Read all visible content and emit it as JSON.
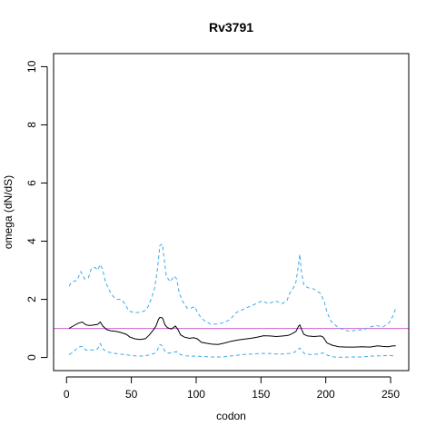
{
  "chart_data": {
    "type": "line",
    "title": "Rv3791",
    "xlabel": "codon",
    "ylabel": "omega (dN/dS)",
    "xlim": [
      -10,
      264
    ],
    "ylim": [
      -0.45,
      10.45
    ],
    "x_ticks": [
      0,
      50,
      100,
      150,
      200,
      250
    ],
    "y_ticks": [
      0,
      2,
      4,
      6,
      8,
      10
    ],
    "reference_line": {
      "y": 1,
      "color": "#cc66cc"
    },
    "colors": {
      "estimate": "#000000",
      "bounds": "#3fa9e6"
    },
    "series": [
      {
        "role": "upper",
        "style": "dashed",
        "points": [
          [
            2,
            2.45
          ],
          [
            4,
            2.6
          ],
          [
            8,
            2.65
          ],
          [
            11,
            2.95
          ],
          [
            14,
            2.7
          ],
          [
            17,
            2.75
          ],
          [
            19,
            3.05
          ],
          [
            22,
            3.1
          ],
          [
            24,
            3.0
          ],
          [
            26,
            3.2
          ],
          [
            28,
            3.0
          ],
          [
            30,
            2.6
          ],
          [
            33,
            2.3
          ],
          [
            36,
            2.1
          ],
          [
            39,
            2.0
          ],
          [
            42,
            2.0
          ],
          [
            45,
            1.85
          ],
          [
            48,
            1.6
          ],
          [
            52,
            1.55
          ],
          [
            56,
            1.55
          ],
          [
            60,
            1.6
          ],
          [
            63,
            1.75
          ],
          [
            66,
            2.1
          ],
          [
            68,
            2.4
          ],
          [
            70,
            3.0
          ],
          [
            72,
            3.85
          ],
          [
            74,
            3.9
          ],
          [
            75,
            3.5
          ],
          [
            77,
            2.8
          ],
          [
            80,
            2.6
          ],
          [
            83,
            2.8
          ],
          [
            85,
            2.7
          ],
          [
            87,
            2.2
          ],
          [
            90,
            1.9
          ],
          [
            93,
            1.7
          ],
          [
            96,
            1.7
          ],
          [
            99,
            1.75
          ],
          [
            101,
            1.55
          ],
          [
            104,
            1.35
          ],
          [
            107,
            1.25
          ],
          [
            111,
            1.15
          ],
          [
            116,
            1.15
          ],
          [
            121,
            1.2
          ],
          [
            126,
            1.3
          ],
          [
            131,
            1.55
          ],
          [
            136,
            1.65
          ],
          [
            141,
            1.75
          ],
          [
            146,
            1.85
          ],
          [
            151,
            1.95
          ],
          [
            156,
            1.85
          ],
          [
            161,
            1.95
          ],
          [
            166,
            1.85
          ],
          [
            170,
            1.95
          ],
          [
            172,
            2.2
          ],
          [
            175,
            2.4
          ],
          [
            177,
            2.6
          ],
          [
            179,
            3.2
          ],
          [
            180,
            3.55
          ],
          [
            181,
            3.0
          ],
          [
            183,
            2.5
          ],
          [
            186,
            2.4
          ],
          [
            191,
            2.35
          ],
          [
            196,
            2.2
          ],
          [
            199,
            1.9
          ],
          [
            201,
            1.55
          ],
          [
            204,
            1.25
          ],
          [
            209,
            1.05
          ],
          [
            214,
            0.95
          ],
          [
            219,
            0.9
          ],
          [
            224,
            0.95
          ],
          [
            229,
            0.95
          ],
          [
            234,
            1.05
          ],
          [
            239,
            1.1
          ],
          [
            244,
            1.05
          ],
          [
            249,
            1.2
          ],
          [
            252,
            1.45
          ],
          [
            254,
            1.7
          ]
        ]
      },
      {
        "role": "estimate",
        "style": "solid",
        "points": [
          [
            2,
            1.0
          ],
          [
            5,
            1.08
          ],
          [
            9,
            1.18
          ],
          [
            12,
            1.22
          ],
          [
            15,
            1.12
          ],
          [
            18,
            1.1
          ],
          [
            21,
            1.12
          ],
          [
            24,
            1.14
          ],
          [
            26,
            1.22
          ],
          [
            28,
            1.08
          ],
          [
            31,
            0.96
          ],
          [
            34,
            0.92
          ],
          [
            38,
            0.9
          ],
          [
            42,
            0.86
          ],
          [
            46,
            0.8
          ],
          [
            49,
            0.7
          ],
          [
            53,
            0.64
          ],
          [
            57,
            0.62
          ],
          [
            61,
            0.65
          ],
          [
            64,
            0.78
          ],
          [
            67,
            0.95
          ],
          [
            69,
            1.08
          ],
          [
            71,
            1.32
          ],
          [
            72,
            1.38
          ],
          [
            74,
            1.36
          ],
          [
            76,
            1.12
          ],
          [
            78,
            1.02
          ],
          [
            81,
            0.98
          ],
          [
            84,
            1.08
          ],
          [
            86,
            0.96
          ],
          [
            88,
            0.78
          ],
          [
            91,
            0.7
          ],
          [
            95,
            0.66
          ],
          [
            98,
            0.68
          ],
          [
            101,
            0.64
          ],
          [
            104,
            0.52
          ],
          [
            108,
            0.49
          ],
          [
            112,
            0.46
          ],
          [
            117,
            0.45
          ],
          [
            122,
            0.5
          ],
          [
            127,
            0.56
          ],
          [
            132,
            0.6
          ],
          [
            137,
            0.63
          ],
          [
            142,
            0.66
          ],
          [
            147,
            0.7
          ],
          [
            152,
            0.75
          ],
          [
            157,
            0.74
          ],
          [
            162,
            0.72
          ],
          [
            167,
            0.74
          ],
          [
            171,
            0.76
          ],
          [
            174,
            0.82
          ],
          [
            177,
            0.9
          ],
          [
            179,
            1.08
          ],
          [
            180,
            1.12
          ],
          [
            181,
            1.0
          ],
          [
            183,
            0.8
          ],
          [
            186,
            0.74
          ],
          [
            191,
            0.72
          ],
          [
            196,
            0.74
          ],
          [
            198,
            0.7
          ],
          [
            201,
            0.5
          ],
          [
            205,
            0.42
          ],
          [
            210,
            0.37
          ],
          [
            216,
            0.36
          ],
          [
            222,
            0.36
          ],
          [
            228,
            0.37
          ],
          [
            234,
            0.36
          ],
          [
            240,
            0.4
          ],
          [
            244,
            0.38
          ],
          [
            248,
            0.37
          ],
          [
            252,
            0.4
          ],
          [
            254,
            0.4
          ]
        ]
      },
      {
        "role": "lower",
        "style": "dashed",
        "points": [
          [
            2,
            0.1
          ],
          [
            5,
            0.18
          ],
          [
            9,
            0.36
          ],
          [
            12,
            0.38
          ],
          [
            15,
            0.25
          ],
          [
            18,
            0.26
          ],
          [
            21,
            0.26
          ],
          [
            24,
            0.3
          ],
          [
            26,
            0.48
          ],
          [
            28,
            0.3
          ],
          [
            31,
            0.2
          ],
          [
            35,
            0.16
          ],
          [
            40,
            0.12
          ],
          [
            45,
            0.1
          ],
          [
            50,
            0.07
          ],
          [
            55,
            0.05
          ],
          [
            60,
            0.05
          ],
          [
            65,
            0.1
          ],
          [
            68,
            0.15
          ],
          [
            70,
            0.25
          ],
          [
            72,
            0.45
          ],
          [
            74,
            0.4
          ],
          [
            76,
            0.2
          ],
          [
            79,
            0.15
          ],
          [
            82,
            0.18
          ],
          [
            85,
            0.2
          ],
          [
            88,
            0.1
          ],
          [
            92,
            0.06
          ],
          [
            97,
            0.05
          ],
          [
            102,
            0.04
          ],
          [
            107,
            0.03
          ],
          [
            112,
            0.02
          ],
          [
            120,
            0.02
          ],
          [
            128,
            0.06
          ],
          [
            136,
            0.1
          ],
          [
            144,
            0.12
          ],
          [
            150,
            0.14
          ],
          [
            156,
            0.14
          ],
          [
            162,
            0.12
          ],
          [
            168,
            0.12
          ],
          [
            172,
            0.14
          ],
          [
            176,
            0.18
          ],
          [
            179,
            0.3
          ],
          [
            180,
            0.32
          ],
          [
            181,
            0.25
          ],
          [
            184,
            0.12
          ],
          [
            189,
            0.1
          ],
          [
            194,
            0.12
          ],
          [
            198,
            0.16
          ],
          [
            201,
            0.08
          ],
          [
            206,
            0.02
          ],
          [
            212,
            0.01
          ],
          [
            220,
            0.02
          ],
          [
            228,
            0.02
          ],
          [
            236,
            0.05
          ],
          [
            244,
            0.06
          ],
          [
            250,
            0.07
          ],
          [
            254,
            0.05
          ]
        ]
      }
    ]
  }
}
